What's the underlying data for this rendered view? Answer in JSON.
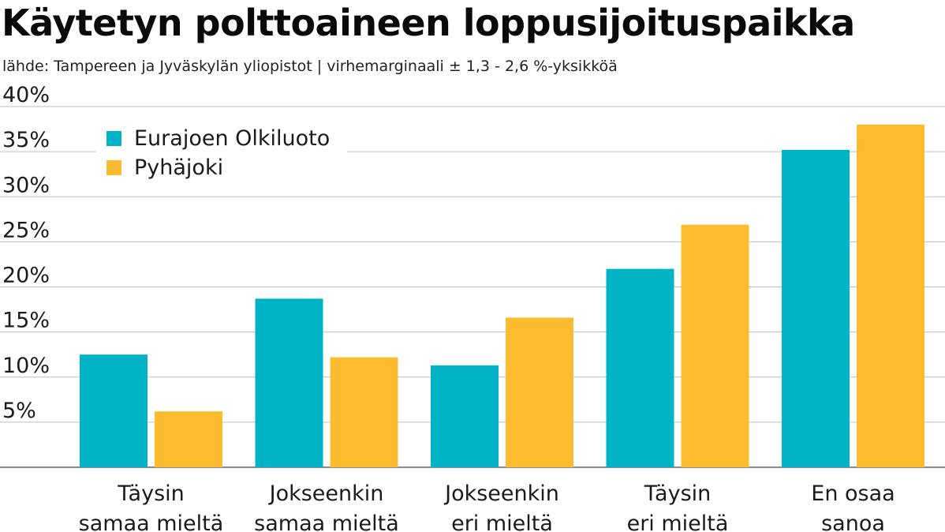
{
  "title": "Käytetyn polttoaineen loppusijoituspaikka",
  "subtitle": "lähde: Tampereen ja Jyväskylän yliopistot | virhemarginaali ± 1,3 - 2,6 %-yksikköä",
  "chart_data": {
    "type": "bar",
    "title": "Käytetyn polttoaineen loppusijoituspaikka",
    "subtitle": "lähde: Tampereen ja Jyväskylän yliopistot | virhemarginaali ± 1,3 - 2,6 %-yksikköä",
    "categories": [
      [
        "Täysin",
        "samaa mieltä"
      ],
      [
        "Jokseenkin",
        "samaa mieltä"
      ],
      [
        "Jokseenkin",
        "eri mieltä"
      ],
      [
        "Täysin",
        "eri mieltä"
      ],
      [
        "En osaa",
        "sanoa"
      ]
    ],
    "series": [
      {
        "name": "Eurajoen Olkiluoto",
        "color": "#00b3c7",
        "values": [
          12.5,
          18.7,
          11.3,
          22.0,
          35.2
        ]
      },
      {
        "name": "Pyhäjoki",
        "color": "#fdbb30",
        "values": [
          6.2,
          12.2,
          16.6,
          26.9,
          38.0
        ]
      }
    ],
    "ylim": [
      0,
      40
    ],
    "yticks": [
      5,
      10,
      15,
      20,
      25,
      30,
      35,
      40
    ],
    "ytick_labels": [
      "5%",
      "10%",
      "15%",
      "20%",
      "25%",
      "30%",
      "35%",
      "40%"
    ],
    "grid": true,
    "legend_position": "top-left"
  }
}
